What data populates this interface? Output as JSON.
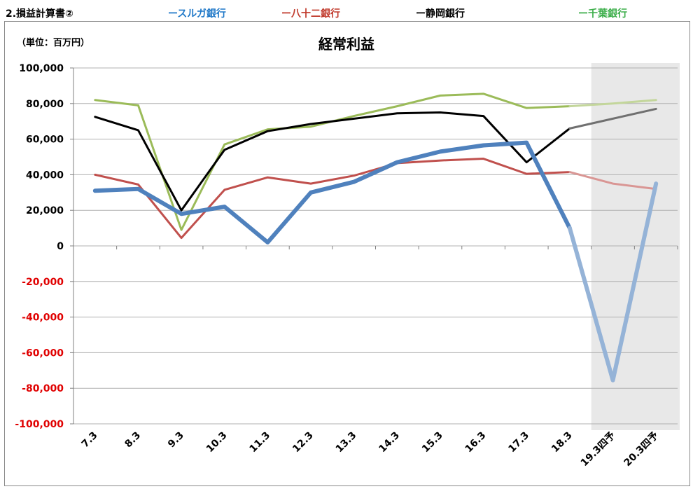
{
  "header": {
    "section_title": "2.損益計算書②",
    "legend": [
      {
        "label": "ースルガ銀行",
        "color": "#1f78c8"
      },
      {
        "label": "ー八十二銀行",
        "color": "#c0392b"
      },
      {
        "label": "ー静岡銀行",
        "color": "#000000"
      },
      {
        "label": "ー千葉銀行",
        "color": "#3cae4a"
      }
    ]
  },
  "chart_data": {
    "type": "line",
    "title": "経常利益",
    "unit_label": "（単位：百万円）",
    "categories": [
      "7.3",
      "8.3",
      "9.3",
      "10.3",
      "11.3",
      "12.3",
      "13.3",
      "14.3",
      "15.3",
      "16.3",
      "17.3",
      "18.3",
      "19.3四予",
      "20.3四予"
    ],
    "forecast_start_index": 12,
    "ylim": [
      -100000,
      100000
    ],
    "ytick_step": 20000,
    "negative_tick_color": "#e00000",
    "grid": true,
    "series": [
      {
        "name": "スルガ銀行",
        "color": "#4f81bd",
        "forecast_color": "#95b3d7",
        "width": 6,
        "values": [
          31000,
          32000,
          18000,
          22000,
          2000,
          30000,
          36000,
          47000,
          53000,
          56500,
          58000,
          10000,
          -75500,
          35000
        ]
      },
      {
        "name": "八十二銀行",
        "color": "#c0504d",
        "forecast_color": "#d99694",
        "width": 3,
        "values": [
          40000,
          34500,
          4500,
          31500,
          38500,
          35000,
          39500,
          46500,
          48000,
          49000,
          40500,
          41500,
          35000,
          32000
        ]
      },
      {
        "name": "静岡銀行",
        "color": "#000000",
        "forecast_color": "#707070",
        "width": 3,
        "values": [
          72500,
          65000,
          20000,
          54000,
          64500,
          68500,
          71500,
          74500,
          75000,
          73000,
          47000,
          66000,
          71500,
          77000
        ]
      },
      {
        "name": "千葉銀行",
        "color": "#9bbb59",
        "forecast_color": "#c3d69b",
        "width": 3,
        "values": [
          82000,
          79000,
          9000,
          57000,
          65500,
          67000,
          73000,
          78500,
          84500,
          85500,
          77500,
          78500,
          80000,
          82000
        ]
      }
    ]
  }
}
